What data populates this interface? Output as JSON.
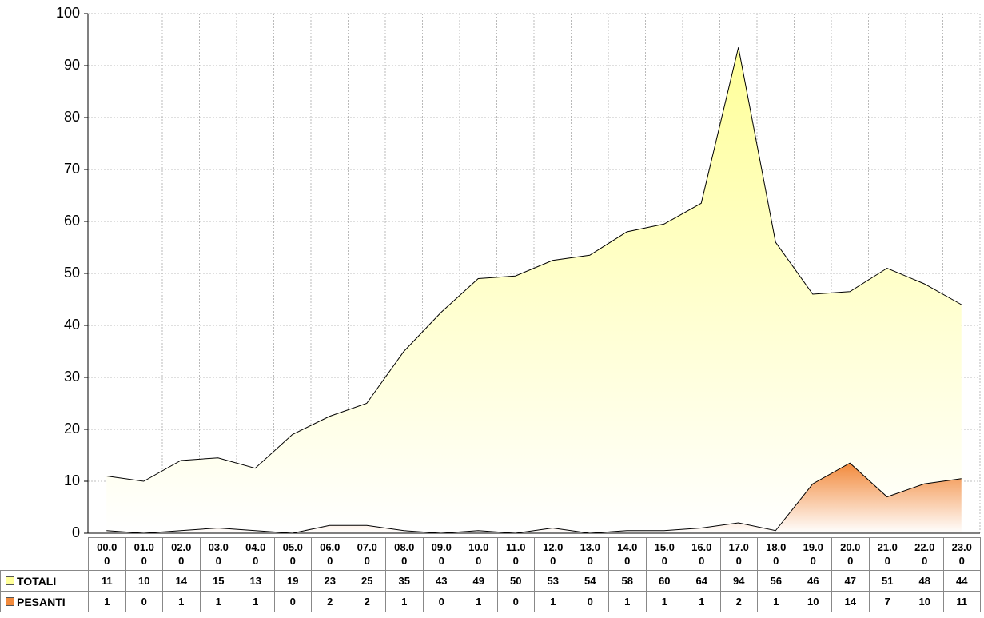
{
  "chart_data": {
    "type": "area",
    "categories": [
      "00.00",
      "01.00",
      "02.00",
      "03.00",
      "04.00",
      "05.00",
      "06.00",
      "07.00",
      "08.00",
      "09.00",
      "10.00",
      "11.00",
      "12.00",
      "13.00",
      "14.00",
      "15.00",
      "16.00",
      "17.00",
      "18.00",
      "19.00",
      "20.00",
      "21.00",
      "22.00",
      "23.00"
    ],
    "series": [
      {
        "name": "TOTALI",
        "color": "#ffff99",
        "values": [
          11,
          10,
          14,
          14.5,
          12.5,
          19,
          22.5,
          25,
          35,
          42.5,
          49,
          49.5,
          52.5,
          53.5,
          58,
          59.5,
          63.5,
          93.5,
          56,
          46,
          46.5,
          51,
          48,
          44
        ],
        "value_labels": [
          "11",
          "10",
          "14",
          "15",
          "13",
          "19",
          "23",
          "25",
          "35",
          "43",
          "49",
          "50",
          "53",
          "54",
          "58",
          "60",
          "64",
          "94",
          "56",
          "46",
          "47",
          "51",
          "48",
          "44"
        ]
      },
      {
        "name": "PESANTI",
        "color": "#f28a3c",
        "values": [
          0.5,
          0,
          0.5,
          1,
          0.5,
          0,
          1.5,
          1.5,
          0.5,
          0,
          0.5,
          0,
          1,
          0,
          0.5,
          0.5,
          1,
          2,
          0.5,
          9.5,
          13.5,
          7,
          9.5,
          10.5
        ],
        "value_labels": [
          "1",
          "0",
          "1",
          "1",
          "1",
          "0",
          "2",
          "2",
          "1",
          "0",
          "1",
          "0",
          "1",
          "0",
          "1",
          "1",
          "1",
          "2",
          "1",
          "10",
          "14",
          "7",
          "10",
          "11"
        ]
      }
    ],
    "ylim": [
      0,
      100
    ],
    "yticks": [
      0,
      10,
      20,
      30,
      40,
      50,
      60,
      70,
      80,
      90,
      100
    ],
    "grid": true
  }
}
